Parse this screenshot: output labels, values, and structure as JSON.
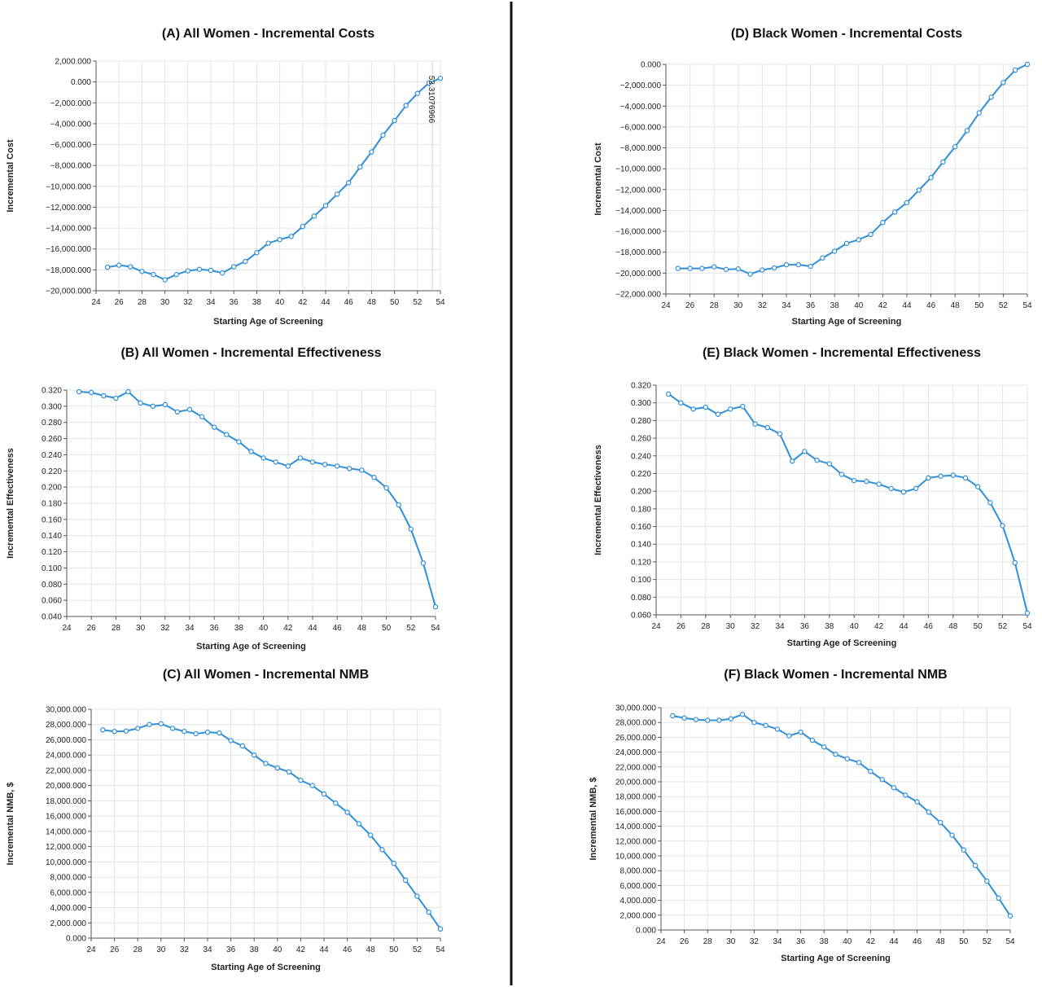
{
  "colors": {
    "series": "#2f8fd8",
    "divider": "#111111"
  },
  "chart_data": [
    {
      "id": "A",
      "type": "line",
      "title": "(A) All Women - Incremental Costs",
      "xlabel": "Starting Age of Screening",
      "ylabel": "Incremental Cost",
      "xlim": [
        24,
        54
      ],
      "xticks": [
        24,
        26,
        28,
        30,
        32,
        34,
        36,
        38,
        40,
        42,
        44,
        46,
        48,
        50,
        52,
        54
      ],
      "ylim": [
        -20000000,
        2000000
      ],
      "yticks": [
        2000000,
        0,
        -2000000,
        -4000000,
        -6000000,
        -8000000,
        -10000000,
        -12000000,
        -14000000,
        -16000000,
        -18000000,
        -20000000
      ],
      "ytick_labels": [
        "2,000.000",
        "0.000",
        "−2,000.000",
        "−4,000.000",
        "−6,000.000",
        "−8,000.000",
        "−10,000.000",
        "−12,000.000",
        "−14,000.000",
        "−16,000.000",
        "−18,000.000",
        "−20,000.000"
      ],
      "grid": true,
      "annotation": {
        "text": "53.31076966",
        "x": 53.3
      },
      "x": [
        25,
        26,
        27,
        28,
        29,
        30,
        31,
        32,
        33,
        34,
        35,
        36,
        37,
        38,
        39,
        40,
        41,
        42,
        43,
        44,
        45,
        46,
        47,
        48,
        49,
        50,
        51,
        52,
        53,
        54
      ],
      "y": [
        -17750000,
        -17550000,
        -17700000,
        -18150000,
        -18450000,
        -18950000,
        -18450000,
        -18100000,
        -17950000,
        -18050000,
        -18300000,
        -17700000,
        -17200000,
        -16350000,
        -15450000,
        -15100000,
        -14800000,
        -13850000,
        -12850000,
        -11850000,
        -10750000,
        -9650000,
        -8150000,
        -6700000,
        -5100000,
        -3700000,
        -2250000,
        -1100000,
        -100000,
        350000
      ]
    },
    {
      "id": "B",
      "type": "line",
      "title": "(B) All Women - Incremental Effectiveness",
      "xlabel": "Starting Age of Screening",
      "ylabel": "Incremental Effectiveness",
      "xlim": [
        24,
        54
      ],
      "xticks": [
        24,
        26,
        28,
        30,
        32,
        34,
        36,
        38,
        40,
        42,
        44,
        46,
        48,
        50,
        52,
        54
      ],
      "ylim": [
        0.04,
        0.32
      ],
      "yticks": [
        0.32,
        0.3,
        0.28,
        0.26,
        0.24,
        0.22,
        0.2,
        0.18,
        0.16,
        0.14,
        0.12,
        0.1,
        0.08,
        0.06,
        0.04
      ],
      "ytick_labels": [
        "0.320",
        "0.300",
        "0.280",
        "0.260",
        "0.240",
        "0.220",
        "0.200",
        "0.180",
        "0.160",
        "0.140",
        "0.120",
        "0.100",
        "0.080",
        "0.060",
        "0.040"
      ],
      "grid": true,
      "x": [
        25,
        26,
        27,
        28,
        29,
        30,
        31,
        32,
        33,
        34,
        35,
        36,
        37,
        38,
        39,
        40,
        41,
        42,
        43,
        44,
        45,
        46,
        47,
        48,
        49,
        50,
        51,
        52,
        53,
        54
      ],
      "y": [
        0.318,
        0.317,
        0.313,
        0.31,
        0.318,
        0.304,
        0.3,
        0.302,
        0.293,
        0.296,
        0.287,
        0.274,
        0.265,
        0.256,
        0.244,
        0.236,
        0.231,
        0.226,
        0.236,
        0.231,
        0.228,
        0.226,
        0.223,
        0.221,
        0.212,
        0.199,
        0.178,
        0.148,
        0.106,
        0.052
      ]
    },
    {
      "id": "C",
      "type": "line",
      "title": "(C) All Women - Incremental NMB",
      "xlabel": "Starting Age of Screening",
      "ylabel": "Incremental NMB, $",
      "xlim": [
        24,
        54
      ],
      "xticks": [
        24,
        26,
        28,
        30,
        32,
        34,
        36,
        38,
        40,
        42,
        44,
        46,
        48,
        50,
        52,
        54
      ],
      "ylim": [
        0,
        30000000
      ],
      "yticks": [
        30000000,
        28000000,
        26000000,
        24000000,
        22000000,
        20000000,
        18000000,
        16000000,
        14000000,
        12000000,
        10000000,
        8000000,
        6000000,
        4000000,
        2000000,
        0
      ],
      "ytick_labels": [
        "30,000.000",
        "28,000.000",
        "26,000.000",
        "24,000.000",
        "22,000.000",
        "20,000.000",
        "18,000.000",
        "16,000.000",
        "14,000.000",
        "12,000.000",
        "10,000.000",
        "8,000.000",
        "6,000.000",
        "4,000.000",
        "2,000.000",
        "0.000"
      ],
      "grid": true,
      "x": [
        25,
        26,
        27,
        28,
        29,
        30,
        31,
        32,
        33,
        34,
        35,
        36,
        37,
        38,
        39,
        40,
        41,
        42,
        43,
        44,
        45,
        46,
        47,
        48,
        49,
        50,
        51,
        52,
        53,
        54
      ],
      "y": [
        27300000,
        27100000,
        27150000,
        27500000,
        28000000,
        28100000,
        27500000,
        27100000,
        26800000,
        27000000,
        26900000,
        25900000,
        25200000,
        24000000,
        22900000,
        22300000,
        21800000,
        20700000,
        20000000,
        18900000,
        17700000,
        16500000,
        15000000,
        13500000,
        11600000,
        9800000,
        7600000,
        5500000,
        3400000,
        1200000
      ]
    },
    {
      "id": "D",
      "type": "line",
      "title": "(D) Black Women - Incremental Costs",
      "xlabel": "Starting Age of Screening",
      "ylabel": "Incremental Cost",
      "xlim": [
        24,
        54
      ],
      "xticks": [
        24,
        26,
        28,
        30,
        32,
        34,
        36,
        38,
        40,
        42,
        44,
        46,
        48,
        50,
        52,
        54
      ],
      "ylim": [
        -22000000,
        0
      ],
      "yticks": [
        0,
        -2000000,
        -4000000,
        -6000000,
        -8000000,
        -10000000,
        -12000000,
        -14000000,
        -16000000,
        -18000000,
        -20000000,
        -22000000
      ],
      "ytick_labels": [
        "0.000",
        "−2,000.000",
        "−4,000.000",
        "−6,000.000",
        "−8,000.000",
        "−10,000.000",
        "−12,000.000",
        "−14,000.000",
        "−16,000.000",
        "−18,000.000",
        "−20,000.000",
        "−22,000.000"
      ],
      "grid": true,
      "x": [
        25,
        26,
        27,
        28,
        29,
        30,
        31,
        32,
        33,
        34,
        35,
        36,
        37,
        38,
        39,
        40,
        41,
        42,
        43,
        44,
        45,
        46,
        47,
        48,
        49,
        50,
        51,
        52,
        53,
        54
      ],
      "y": [
        -19550000,
        -19550000,
        -19550000,
        -19400000,
        -19650000,
        -19600000,
        -20100000,
        -19700000,
        -19500000,
        -19200000,
        -19200000,
        -19350000,
        -18550000,
        -17900000,
        -17150000,
        -16800000,
        -16300000,
        -15150000,
        -14150000,
        -13250000,
        -12050000,
        -10850000,
        -9350000,
        -7900000,
        -6350000,
        -4650000,
        -3150000,
        -1750000,
        -550000,
        0
      ]
    },
    {
      "id": "E",
      "type": "line",
      "title": "(E) Black Women - Incremental Effectiveness",
      "xlabel": "Starting Age of Screening",
      "ylabel": "Incremental Effectiveness",
      "xlim": [
        24,
        54
      ],
      "xticks": [
        24,
        26,
        28,
        30,
        32,
        34,
        36,
        38,
        40,
        42,
        44,
        46,
        48,
        50,
        52,
        54
      ],
      "ylim": [
        0.06,
        0.32
      ],
      "yticks": [
        0.32,
        0.3,
        0.28,
        0.26,
        0.24,
        0.22,
        0.2,
        0.18,
        0.16,
        0.14,
        0.12,
        0.1,
        0.08,
        0.06
      ],
      "ytick_labels": [
        "0.320",
        "0.300",
        "0.280",
        "0.260",
        "0.240",
        "0.220",
        "0.200",
        "0.180",
        "0.160",
        "0.140",
        "0.120",
        "0.100",
        "0.080",
        "0.060"
      ],
      "grid": true,
      "x": [
        25,
        26,
        27,
        28,
        29,
        30,
        31,
        32,
        33,
        34,
        35,
        36,
        37,
        38,
        39,
        40,
        41,
        42,
        43,
        44,
        45,
        46,
        47,
        48,
        49,
        50,
        51,
        52,
        53,
        54
      ],
      "y": [
        0.31,
        0.3,
        0.293,
        0.295,
        0.287,
        0.293,
        0.296,
        0.276,
        0.272,
        0.265,
        0.234,
        0.245,
        0.235,
        0.231,
        0.219,
        0.212,
        0.211,
        0.208,
        0.203,
        0.199,
        0.203,
        0.215,
        0.217,
        0.218,
        0.215,
        0.205,
        0.187,
        0.161,
        0.119,
        0.062
      ]
    },
    {
      "id": "F",
      "type": "line",
      "title": "(F) Black Women - Incremental NMB",
      "xlabel": "Starting Age of Screening",
      "ylabel": "Incremental NMB, $",
      "xlim": [
        24,
        54
      ],
      "xticks": [
        24,
        26,
        28,
        30,
        32,
        34,
        36,
        38,
        40,
        42,
        44,
        46,
        48,
        50,
        52,
        54
      ],
      "ylim": [
        0,
        30000000
      ],
      "yticks": [
        30000000,
        28000000,
        26000000,
        24000000,
        22000000,
        20000000,
        18000000,
        16000000,
        14000000,
        12000000,
        10000000,
        8000000,
        6000000,
        4000000,
        2000000,
        0
      ],
      "ytick_labels": [
        "30,000.000",
        "28,000.000",
        "26,000.000",
        "24,000.000",
        "22,000.000",
        "20,000.000",
        "18,000.000",
        "16,000.000",
        "14,000.000",
        "12,000.000",
        "10,000.000",
        "8,000.000",
        "6,000.000",
        "4,000.000",
        "2,000.000",
        "0.000"
      ],
      "grid": true,
      "x": [
        25,
        26,
        27,
        28,
        29,
        30,
        31,
        32,
        33,
        34,
        35,
        36,
        37,
        38,
        39,
        40,
        41,
        42,
        43,
        44,
        45,
        46,
        47,
        48,
        49,
        50,
        51,
        52,
        53,
        54
      ],
      "y": [
        28900000,
        28600000,
        28400000,
        28300000,
        28300000,
        28500000,
        29100000,
        28000000,
        27600000,
        27100000,
        26200000,
        26700000,
        25600000,
        24700000,
        23700000,
        23100000,
        22600000,
        21400000,
        20300000,
        19200000,
        18200000,
        17300000,
        15900000,
        14500000,
        12800000,
        10800000,
        8700000,
        6600000,
        4300000,
        1900000
      ]
    }
  ]
}
